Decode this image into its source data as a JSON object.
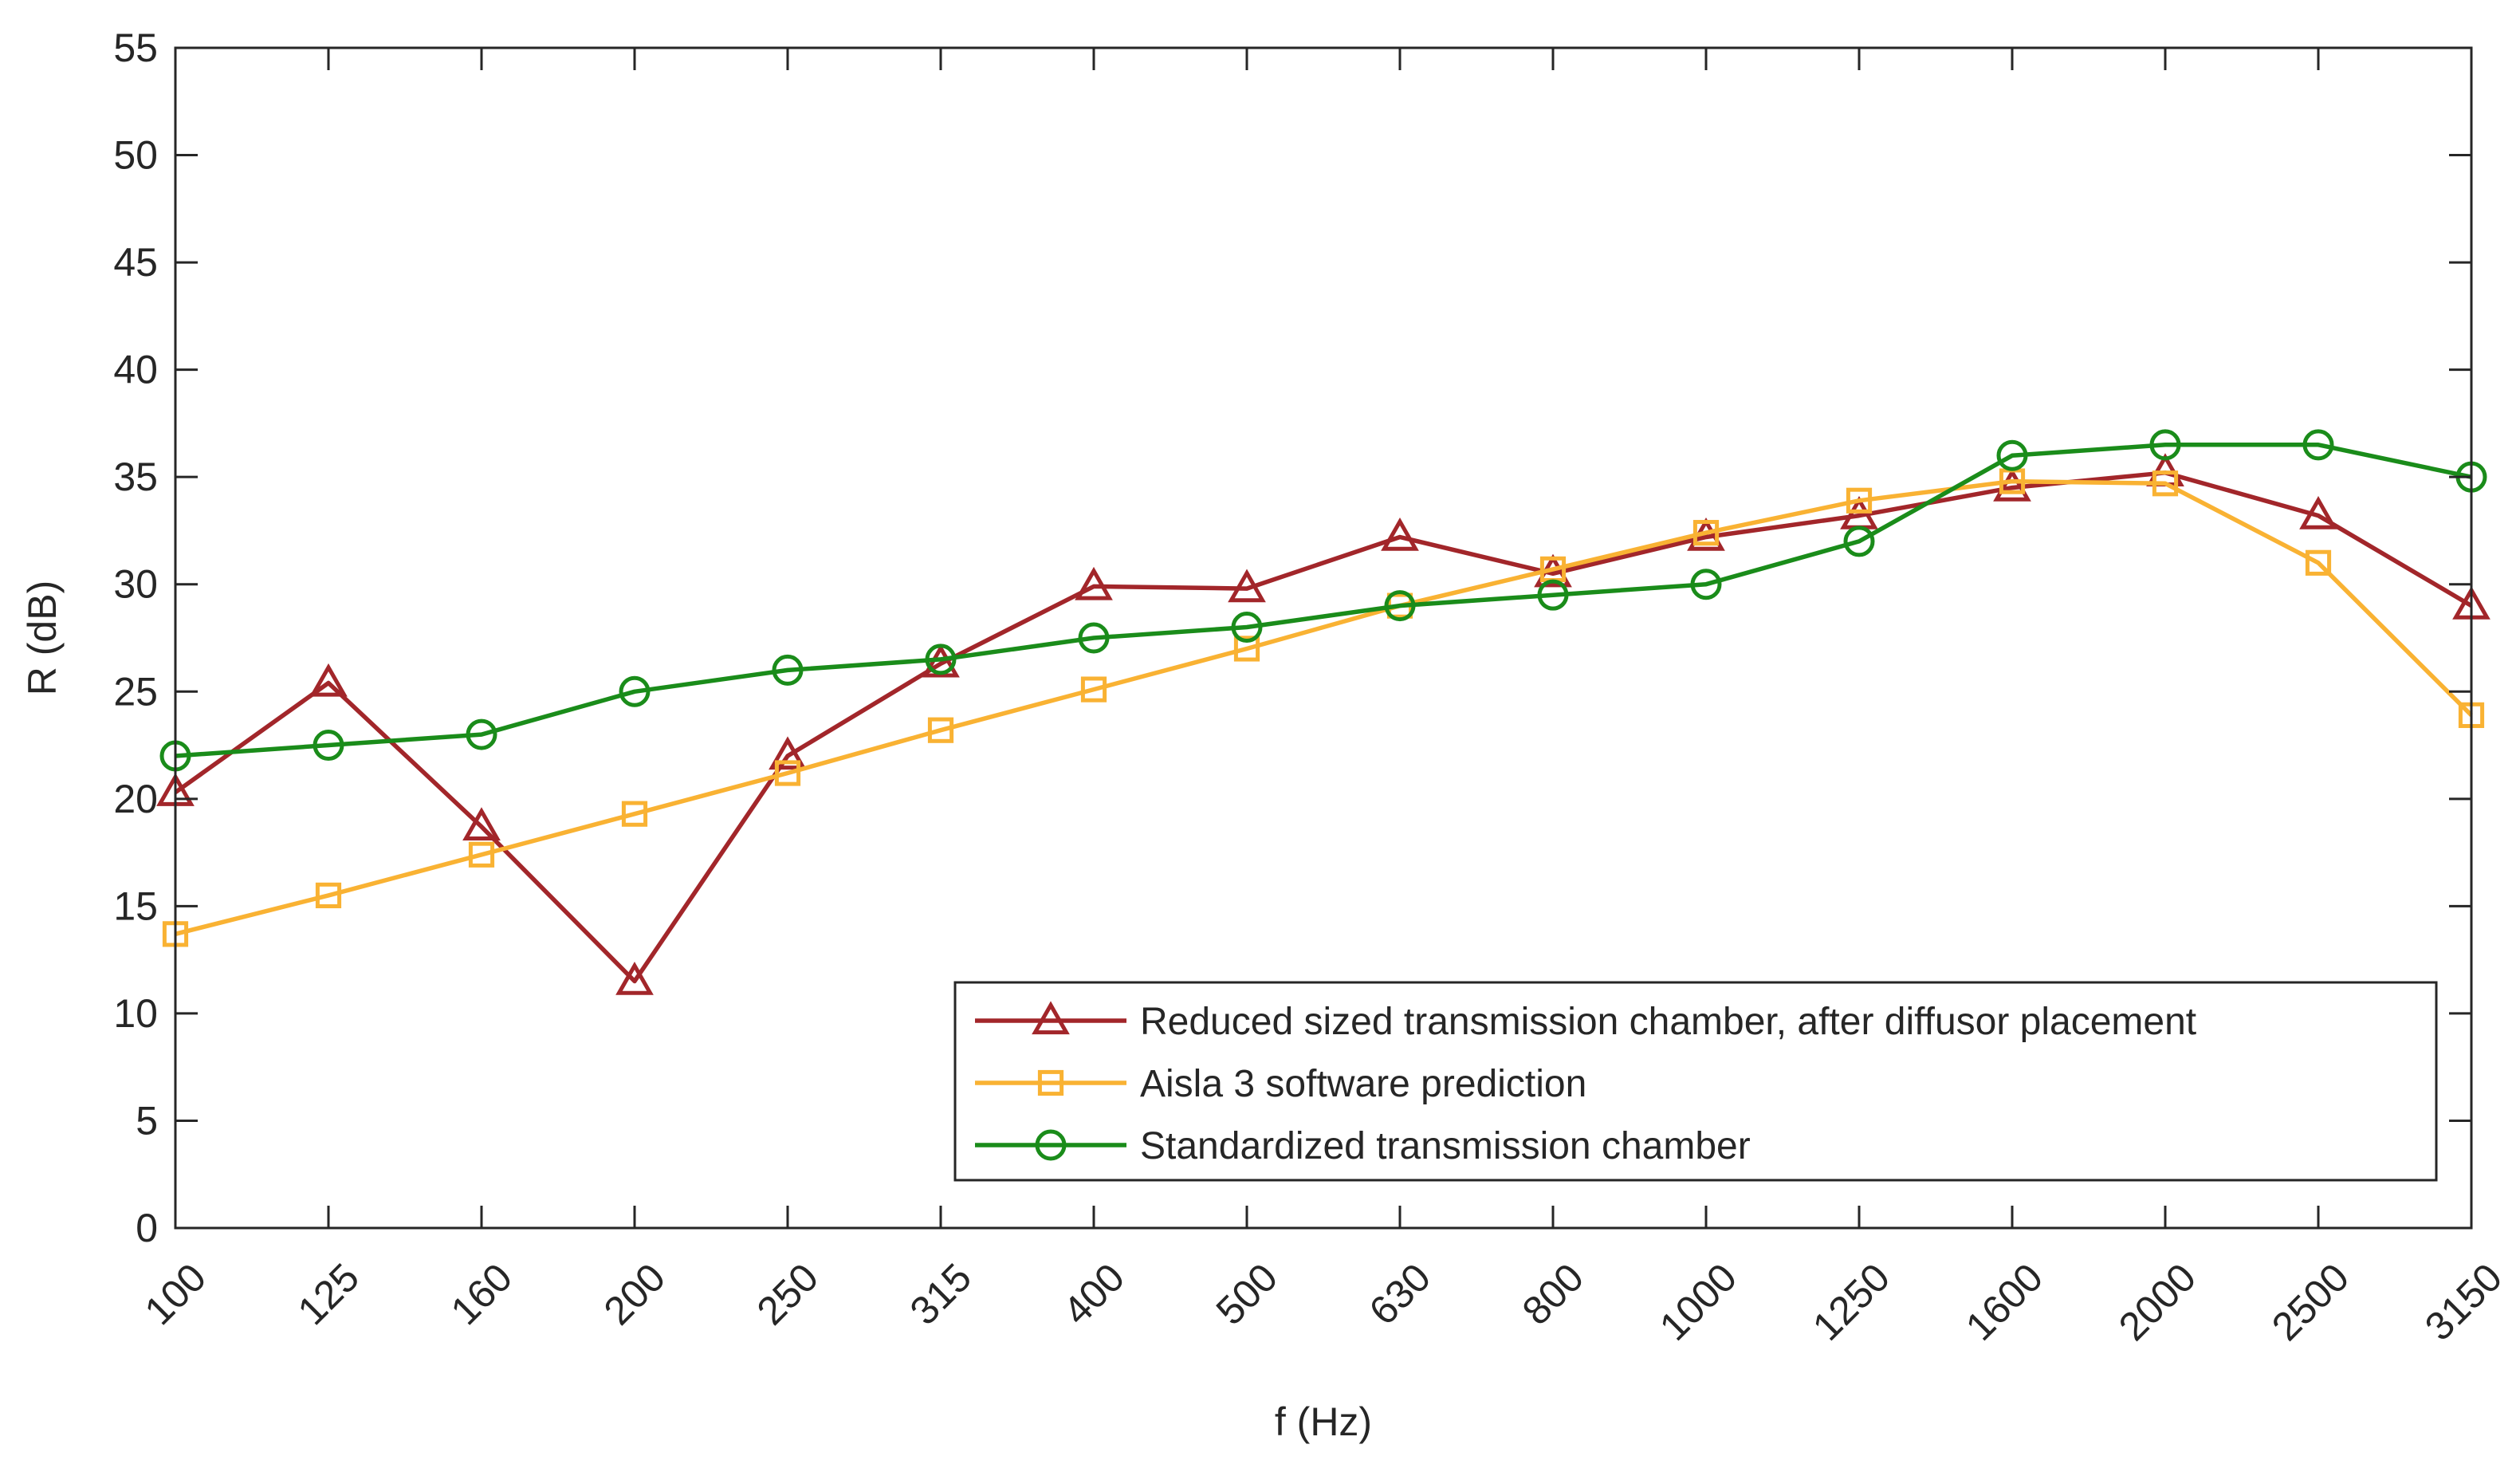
{
  "chart_data": {
    "type": "line",
    "title": "",
    "xlabel": "f (Hz)",
    "ylabel": "R (dB)",
    "categories": [
      "100",
      "125",
      "160",
      "200",
      "250",
      "315",
      "400",
      "500",
      "630",
      "800",
      "1000",
      "1250",
      "1600",
      "2000",
      "2500",
      "3150"
    ],
    "ylim": [
      0,
      55
    ],
    "yticks": [
      0,
      5,
      10,
      15,
      20,
      25,
      30,
      35,
      40,
      45,
      50,
      55
    ],
    "grid": false,
    "legend_position": "bottom-right",
    "series": [
      {
        "name": "Reduced sized transmission chamber, after diffusor placement",
        "color": "#A2262A",
        "marker": "triangle",
        "values": [
          20.3,
          25.4,
          18.7,
          11.5,
          22.0,
          26.3,
          29.9,
          29.8,
          32.2,
          30.5,
          32.2,
          33.2,
          34.5,
          35.2,
          33.2,
          29.0
        ]
      },
      {
        "name": "Aisla 3 software prediction",
        "color": "#F9B233",
        "marker": "square",
        "values": [
          13.7,
          15.5,
          17.4,
          19.3,
          21.2,
          23.2,
          25.1,
          27.0,
          29.0,
          30.7,
          32.4,
          33.9,
          34.8,
          34.7,
          31.0,
          23.9
        ]
      },
      {
        "name": "Standardized transmission chamber",
        "color": "#1A8C1A",
        "marker": "circle",
        "values": [
          22.0,
          22.5,
          23.0,
          25.0,
          26.0,
          26.5,
          27.5,
          28.0,
          29.0,
          29.5,
          30.0,
          32.0,
          36.0,
          36.5,
          36.5,
          35.0
        ]
      }
    ]
  }
}
